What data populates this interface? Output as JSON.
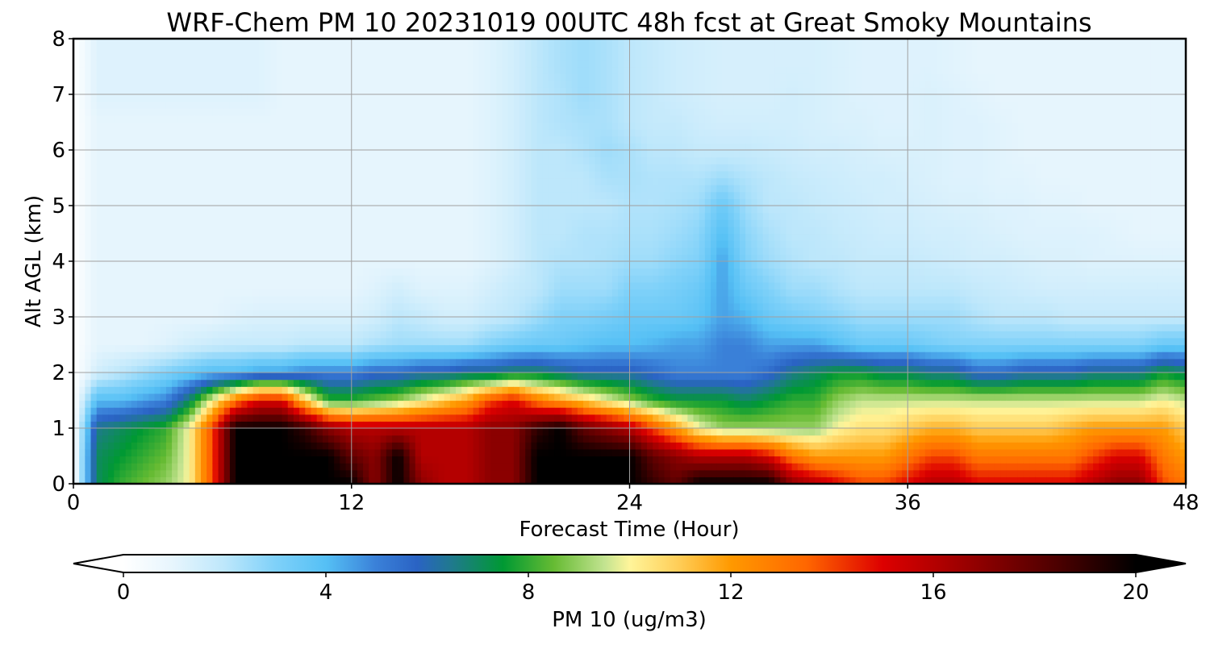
{
  "chart_data": {
    "type": "heatmap",
    "title": "WRF-Chem PM 10  20231019 00UTC 48h fcst at Great Smoky Mountains",
    "xlabel": "Forecast Time (Hour)",
    "ylabel": "Alt AGL (km)",
    "xlim": [
      0,
      48
    ],
    "ylim": [
      0,
      8
    ],
    "x_ticks": [
      0,
      12,
      24,
      36,
      48
    ],
    "y_ticks": [
      0,
      1,
      2,
      3,
      4,
      5,
      6,
      7,
      8
    ],
    "grid": true,
    "x": [
      0,
      1,
      2,
      3,
      4,
      5,
      6,
      7,
      8,
      9,
      10,
      11,
      12,
      13,
      14,
      15,
      16,
      17,
      18,
      19,
      20,
      21,
      22,
      23,
      24,
      25,
      26,
      27,
      28,
      29,
      30,
      31,
      32,
      33,
      34,
      35,
      36,
      37,
      38,
      39,
      40,
      41,
      42,
      43,
      44,
      45,
      46,
      47,
      48
    ],
    "y": [
      0,
      0.5,
      1,
      1.5,
      2,
      2.5,
      3,
      3.5,
      4,
      4.5,
      5,
      5.5,
      6,
      6.5,
      7,
      7.5,
      8
    ],
    "z": [
      [
        0,
        7,
        8,
        8.5,
        9,
        10,
        14,
        20,
        20,
        20,
        20,
        20,
        20,
        17,
        20,
        17,
        16,
        16,
        17,
        17,
        20,
        20,
        20,
        20,
        20,
        19,
        18,
        20,
        20,
        20,
        20,
        17,
        16,
        15,
        14,
        14,
        15,
        16,
        16,
        15,
        15,
        15,
        15,
        15,
        16,
        17,
        17,
        14,
        13
      ],
      [
        0,
        7,
        7.5,
        8,
        8.5,
        10,
        14,
        20,
        20,
        20,
        20,
        20,
        18,
        17,
        20,
        16,
        16,
        16,
        17,
        17,
        20,
        20,
        20,
        20,
        20,
        18,
        17,
        16,
        16,
        16,
        15,
        13,
        12,
        12,
        12,
        12,
        13,
        14,
        14,
        13,
        13,
        13,
        13,
        13,
        14,
        15,
        15,
        13,
        12
      ],
      [
        0,
        6.5,
        7,
        7.5,
        8,
        10,
        14,
        20,
        20,
        20,
        19,
        17,
        16,
        16,
        16,
        16,
        16,
        16,
        17,
        17,
        19,
        20,
        18,
        17,
        16,
        14,
        12,
        10,
        9,
        9,
        9,
        9,
        9,
        10,
        10.5,
        10.5,
        11,
        11.5,
        11.5,
        11,
        11,
        11,
        11,
        11.5,
        12,
        12,
        12,
        12,
        11
      ],
      [
        0,
        4,
        4,
        4.5,
        5,
        7,
        10,
        13,
        15,
        15,
        11,
        8,
        8,
        8.5,
        9,
        10,
        11,
        12,
        14,
        15,
        13,
        12,
        11,
        10,
        9,
        8,
        7.5,
        7.5,
        7.5,
        7,
        7.5,
        8,
        8,
        9,
        9.5,
        9.5,
        9.5,
        9.5,
        9.5,
        9.5,
        9.5,
        9.5,
        9.5,
        9.5,
        9.5,
        9.5,
        9.5,
        10,
        9.5
      ],
      [
        0,
        1.5,
        2,
        2.5,
        3,
        3.5,
        4,
        4,
        4.5,
        4.5,
        5,
        5,
        5,
        5.5,
        5.5,
        6,
        6,
        6.5,
        6.5,
        7,
        7,
        6.5,
        6,
        6,
        6,
        5.5,
        5,
        5,
        5,
        5,
        5.5,
        6.5,
        7,
        7.5,
        7.5,
        7,
        7,
        6.5,
        6.5,
        5.5,
        5.5,
        6,
        6,
        6,
        6.5,
        6.5,
        6.5,
        7.5,
        7
      ],
      [
        0,
        1,
        1,
        1,
        1.2,
        1.5,
        1.7,
        1.8,
        1.8,
        1.8,
        2,
        2,
        2,
        2.3,
        2.5,
        2.5,
        2.5,
        2.5,
        3,
        3.3,
        3.5,
        3.5,
        3.8,
        4,
        4,
        4.2,
        4.5,
        4.5,
        5,
        5,
        4.5,
        4.5,
        4.5,
        4,
        3.5,
        3.5,
        3.5,
        3.2,
        3,
        3,
        3,
        3,
        3,
        3,
        3,
        3,
        3,
        3.5,
        3.5
      ],
      [
        0,
        1,
        1,
        1,
        1,
        1,
        1,
        1.2,
        1.3,
        1.3,
        1.3,
        1.3,
        1.3,
        1.5,
        2,
        1.8,
        1.5,
        1.5,
        1.8,
        2,
        2.5,
        3,
        3,
        3.2,
        3.5,
        3.5,
        3.5,
        3.8,
        4.5,
        4.2,
        3.5,
        3.2,
        3,
        2.8,
        2.5,
        2.5,
        2.5,
        2.5,
        2.5,
        2.2,
        2,
        2,
        2,
        1.8,
        1.8,
        1.8,
        1.8,
        1.8,
        1.8
      ],
      [
        0,
        1,
        1,
        1,
        1,
        1,
        1,
        1,
        1,
        1,
        1,
        1,
        1,
        1.2,
        1.5,
        1.2,
        1.2,
        1.2,
        1.5,
        1.8,
        2,
        2.5,
        2.5,
        2.5,
        3,
        3,
        3.2,
        3.5,
        4.5,
        3.5,
        3,
        2.5,
        2.5,
        2.2,
        2,
        2,
        2,
        2,
        2,
        1.8,
        1.7,
        1.6,
        1.5,
        1.5,
        1.5,
        1.5,
        1.5,
        1.5,
        1.5
      ],
      [
        0,
        1,
        1,
        1,
        1,
        1,
        1,
        1,
        1,
        1,
        1,
        1,
        1,
        1,
        1,
        1,
        1,
        1,
        1.2,
        1.5,
        2,
        2.2,
        2.2,
        2.3,
        2.5,
        2.5,
        2.8,
        3,
        4.5,
        3,
        2.5,
        2.2,
        2,
        2,
        1.8,
        1.8,
        1.8,
        1.7,
        1.6,
        1.5,
        1.5,
        1.4,
        1.3,
        1.3,
        1.2,
        1.2,
        1.2,
        1.2,
        1.2
      ],
      [
        0,
        1,
        1,
        1,
        1,
        1,
        1,
        1,
        1,
        1,
        1,
        1,
        1,
        1,
        1,
        1,
        1,
        1,
        1.2,
        1.5,
        2,
        2,
        2.2,
        2.2,
        2.3,
        2.3,
        2.5,
        2.8,
        4,
        2.8,
        2.3,
        2,
        2,
        1.8,
        1.7,
        1.6,
        1.6,
        1.5,
        1.5,
        1.4,
        1.3,
        1.2,
        1.2,
        1.2,
        1.2,
        1.1,
        1,
        1,
        1
      ],
      [
        0,
        1,
        1,
        1,
        1,
        1,
        1,
        1,
        1,
        1,
        1,
        1,
        1,
        1,
        1,
        1,
        1,
        1,
        1.2,
        1.5,
        2,
        2,
        2,
        2,
        2.2,
        2.2,
        2.3,
        2.5,
        3.5,
        2.5,
        2,
        2,
        1.8,
        1.7,
        1.6,
        1.5,
        1.5,
        1.4,
        1.3,
        1.3,
        1.2,
        1.2,
        1.1,
        1.1,
        1,
        1,
        1,
        1,
        1
      ],
      [
        0,
        1,
        1,
        1,
        1,
        1,
        1,
        1,
        1,
        1,
        1,
        1,
        1,
        1,
        1,
        1,
        1,
        1,
        1.2,
        1.5,
        2,
        2,
        2,
        2.3,
        2.3,
        2.2,
        2.2,
        2.2,
        2.5,
        2.2,
        2,
        1.8,
        1.7,
        1.6,
        1.5,
        1.5,
        1.4,
        1.3,
        1.2,
        1.2,
        1.1,
        1.1,
        1,
        1,
        1,
        1,
        1,
        1,
        1
      ],
      [
        0,
        1,
        1,
        1,
        1,
        1,
        1,
        1,
        1,
        1,
        1,
        1,
        1,
        1,
        1,
        1,
        1,
        1,
        1.2,
        1.5,
        2,
        2,
        2.2,
        2.5,
        2.3,
        2,
        2,
        1.8,
        1.8,
        1.8,
        1.7,
        1.6,
        1.5,
        1.5,
        1.4,
        1.3,
        1.3,
        1.3,
        1.2,
        1.2,
        1.1,
        1,
        1,
        1,
        1,
        1,
        1,
        1,
        1
      ],
      [
        0,
        1,
        1,
        1,
        1,
        1,
        1,
        1,
        1,
        1,
        1,
        1,
        1,
        1,
        1,
        1,
        1,
        1,
        1.2,
        1.5,
        2,
        2.2,
        2.3,
        2.3,
        2,
        1.8,
        1.8,
        1.6,
        1.5,
        1.5,
        1.5,
        1.5,
        1.4,
        1.3,
        1.3,
        1.2,
        1.2,
        1.3,
        1.2,
        1.2,
        1.1,
        1,
        1,
        1,
        1,
        1,
        1,
        1,
        1
      ],
      [
        0,
        1.2,
        1.2,
        1.2,
        1.2,
        1.2,
        1.2,
        1.2,
        1.2,
        1,
        1,
        1,
        1,
        1,
        1,
        1,
        1,
        1,
        1.2,
        1.5,
        2,
        2.2,
        2.5,
        2.3,
        2,
        1.8,
        1.6,
        1.5,
        1.4,
        1.4,
        1.4,
        1.5,
        1.4,
        1.3,
        1.2,
        1.2,
        1.2,
        1.3,
        1.2,
        1.1,
        1,
        1,
        1,
        1,
        1,
        1,
        1,
        1,
        1
      ],
      [
        0,
        1.2,
        1.2,
        1.2,
        1.2,
        1.2,
        1.2,
        1.2,
        1.2,
        1,
        1,
        1,
        1,
        1,
        1,
        1,
        1,
        1,
        1.2,
        1.5,
        2,
        2.3,
        2.5,
        2.3,
        2,
        1.8,
        1.6,
        1.5,
        1.4,
        1.4,
        1.4,
        1.4,
        1.4,
        1.3,
        1.2,
        1.2,
        1.2,
        1.2,
        1.1,
        1,
        1,
        1,
        1,
        1,
        1,
        1,
        1,
        1,
        1
      ],
      [
        0,
        1.2,
        1.2,
        1.2,
        1.2,
        1.2,
        1.2,
        1.2,
        1.2,
        1,
        1,
        1,
        1,
        1,
        1,
        1,
        1,
        1,
        1.2,
        1.5,
        2,
        2.3,
        2.5,
        2.3,
        2,
        1.8,
        1.6,
        1.5,
        1.4,
        1.4,
        1.4,
        1.4,
        1.4,
        1.3,
        1.2,
        1.2,
        1.2,
        1.2,
        1.1,
        1,
        1,
        1,
        1,
        1,
        1,
        1,
        1,
        1,
        1
      ]
    ],
    "colorbar": {
      "label": "PM 10  (ug/m3)",
      "range": [
        0,
        20
      ],
      "ticks": [
        0,
        4,
        8,
        12,
        16,
        20
      ],
      "extend": "both",
      "color_stops": [
        {
          "v": 0,
          "c": "#ffffff"
        },
        {
          "v": 1,
          "c": "#e6f5fd"
        },
        {
          "v": 2,
          "c": "#bde7fb"
        },
        {
          "v": 3,
          "c": "#7fd1f9"
        },
        {
          "v": 4,
          "c": "#55c0f5"
        },
        {
          "v": 5,
          "c": "#3a80d8"
        },
        {
          "v": 5.8,
          "c": "#2a63c4"
        },
        {
          "v": 6.5,
          "c": "#1f7a8c"
        },
        {
          "v": 7.5,
          "c": "#009933"
        },
        {
          "v": 8.5,
          "c": "#66bb33"
        },
        {
          "v": 9.5,
          "c": "#c2e390"
        },
        {
          "v": 10,
          "c": "#fff59a"
        },
        {
          "v": 11,
          "c": "#ffcc55"
        },
        {
          "v": 12,
          "c": "#ff9900"
        },
        {
          "v": 13.5,
          "c": "#ff6600"
        },
        {
          "v": 15,
          "c": "#dd0000"
        },
        {
          "v": 16.5,
          "c": "#a00000"
        },
        {
          "v": 18.5,
          "c": "#4a0000"
        },
        {
          "v": 20,
          "c": "#000000"
        }
      ]
    }
  }
}
